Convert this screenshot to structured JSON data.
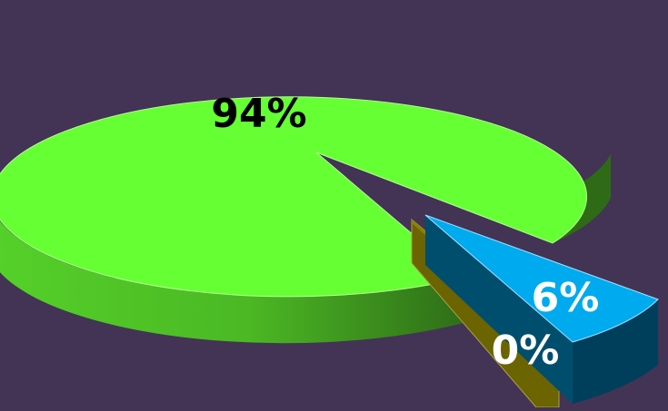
{
  "chart_data": {
    "type": "pie",
    "title": "",
    "slices": [
      {
        "label": "94%",
        "value": 94,
        "color": "#66ff33",
        "side_color": "#3f9a1c",
        "dark_color": "#2c6618",
        "label_color": "#000000"
      },
      {
        "label": "6%",
        "value": 6,
        "color": "#00aaee",
        "side_color": "#004e6e",
        "dark_color": "#003a52",
        "label_color": "#ffffff"
      },
      {
        "label": "0%",
        "value": 0,
        "color": "#6b6400",
        "side_color": "#5a5500",
        "dark_color": "#4a4600",
        "label_color": "#ffffff"
      }
    ],
    "style": "3d-exploded"
  }
}
